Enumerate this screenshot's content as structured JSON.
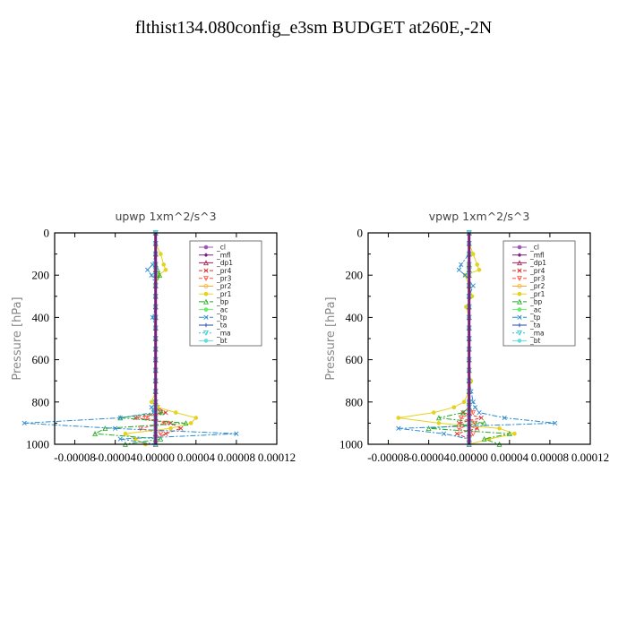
{
  "title": "flthist134.080config_e3sm  BUDGET at260E,-2N",
  "chart_data": [
    {
      "type": "line",
      "title": "upwp   1xm^2/s^3",
      "ylabel": "Pressure [hPa]",
      "xlabel": "",
      "xlim": [
        -0.0001,
        0.00012
      ],
      "ylim": [
        1000,
        0
      ],
      "x_ticks": [
        "-0.00008",
        "-0.00004",
        "0.00000",
        "0.00004",
        "0.00008",
        "0.00012"
      ],
      "y_ticks": [
        "0",
        "200",
        "400",
        "600",
        "800",
        "1000"
      ],
      "legend_position": "top-right",
      "levels": [
        0,
        50,
        100,
        150,
        175,
        200,
        250,
        300,
        350,
        400,
        450,
        500,
        550,
        600,
        650,
        700,
        750,
        800,
        825,
        850,
        875,
        900,
        925,
        950,
        975,
        1000
      ],
      "series": [
        {
          "name": "_cl",
          "color": "#9b59b6",
          "values": [
            0,
            0,
            0,
            0,
            0,
            0,
            0,
            0,
            0,
            0,
            0,
            0,
            0,
            0,
            0,
            0,
            0,
            0,
            0,
            0,
            0,
            0,
            0,
            0,
            0,
            0
          ]
        },
        {
          "name": "_mfl",
          "color": "#7a1f7a",
          "values": [
            0,
            0,
            0,
            0,
            0,
            0,
            0,
            0,
            0,
            0,
            0,
            0,
            0,
            0,
            0,
            0,
            0,
            0,
            0,
            0,
            0,
            0,
            0,
            0,
            0,
            0
          ]
        },
        {
          "name": "_dp1",
          "color": "#aa2255",
          "values": [
            0,
            0,
            0,
            0,
            0,
            0,
            0,
            0,
            0,
            0,
            0,
            0,
            0,
            0,
            0,
            0,
            0,
            0,
            0,
            0,
            0,
            0,
            0,
            0,
            0,
            0
          ]
        },
        {
          "name": "_pr4",
          "color": "#dd3333",
          "values": [
            0,
            0,
            0,
            0,
            0,
            0,
            0,
            0,
            0,
            0,
            0,
            0,
            0,
            0,
            0,
            0,
            0,
            0,
            2e-06,
            1e-05,
            -2e-05,
            1.5e-05,
            2.5e-05,
            1e-05,
            0,
            0
          ]
        },
        {
          "name": "_pr3",
          "color": "#ff5544",
          "values": [
            0,
            0,
            0,
            0,
            0,
            0,
            0,
            0,
            0,
            0,
            0,
            0,
            0,
            0,
            0,
            0,
            0,
            0,
            0,
            5e-06,
            -1e-05,
            1e-05,
            -1.5e-05,
            5e-06,
            0,
            0
          ]
        },
        {
          "name": "_pr2",
          "color": "#ffaa22",
          "values": [
            0,
            0,
            0,
            0,
            0,
            0,
            0,
            0,
            0,
            0,
            0,
            0,
            0,
            0,
            0,
            0,
            0,
            0,
            0,
            0,
            0,
            0,
            0,
            0,
            0,
            0
          ]
        },
        {
          "name": "_pr1",
          "color": "#e6d21e",
          "values": [
            0,
            0,
            5e-06,
            8e-06,
            1e-05,
            3e-06,
            0,
            0,
            0,
            0,
            0,
            0,
            0,
            0,
            0,
            0,
            0,
            -4e-06,
            2e-06,
            2e-05,
            4e-05,
            3.5e-05,
            1.5e-05,
            -3e-05,
            -2e-05,
            -1e-05
          ]
        },
        {
          "name": "_bp",
          "color": "#22aa22",
          "values": [
            0,
            0,
            0,
            0,
            2e-06,
            4e-06,
            0,
            0,
            0,
            0,
            0,
            0,
            0,
            0,
            0,
            0,
            0,
            0,
            0,
            6e-06,
            -3.5e-05,
            3e-05,
            -5e-05,
            -6e-05,
            5e-06,
            -3e-05
          ]
        },
        {
          "name": "_ac",
          "color": "#66ee66",
          "values": [
            0,
            0,
            0,
            0,
            0,
            0,
            0,
            0,
            0,
            0,
            0,
            0,
            0,
            0,
            0,
            0,
            0,
            0,
            0,
            0,
            0,
            0,
            0,
            0,
            0,
            0
          ]
        },
        {
          "name": "_tp",
          "color": "#2a8ad0",
          "values": [
            0,
            0,
            0,
            -3e-06,
            -8e-06,
            -4e-06,
            0,
            0,
            0,
            -3e-06,
            0,
            0,
            0,
            0,
            0,
            0,
            0,
            0,
            -4e-06,
            -2e-06,
            -3.5e-05,
            -0.00013,
            -4e-05,
            8e-05,
            -3.5e-05,
            0
          ]
        },
        {
          "name": "_ta",
          "color": "#2244aa",
          "values": [
            0,
            0,
            0,
            0,
            0,
            0,
            0,
            0,
            0,
            0,
            0,
            0,
            0,
            0,
            0,
            0,
            0,
            0,
            0,
            0,
            0,
            0,
            0,
            0,
            0,
            0
          ]
        },
        {
          "name": "_ma",
          "color": "#22cccc",
          "values": [
            0,
            0,
            0,
            0,
            0,
            0,
            0,
            0,
            0,
            0,
            0,
            0,
            0,
            0,
            0,
            0,
            0,
            0,
            0,
            0,
            0,
            0,
            0,
            0,
            0,
            0
          ]
        },
        {
          "name": "_bt",
          "color": "#66dddd",
          "values": [
            0,
            0,
            0,
            0,
            0,
            0,
            0,
            0,
            0,
            0,
            0,
            0,
            0,
            0,
            0,
            0,
            0,
            0,
            0,
            0,
            0,
            0,
            0,
            0,
            0,
            0
          ]
        }
      ]
    },
    {
      "type": "line",
      "title": "vpwp   1xm^2/s^3",
      "ylabel": "Pressure [hPa]",
      "xlabel": "",
      "xlim": [
        -0.0001,
        0.00012
      ],
      "ylim": [
        1000,
        0
      ],
      "x_ticks": [
        "-0.00008",
        "-0.00004",
        "0.00000",
        "0.00004",
        "0.00008",
        "0.00012"
      ],
      "y_ticks": [
        "0",
        "200",
        "400",
        "600",
        "800",
        "1000"
      ],
      "legend_position": "top-right",
      "levels": [
        0,
        50,
        100,
        150,
        175,
        200,
        250,
        300,
        350,
        400,
        450,
        500,
        550,
        600,
        650,
        700,
        750,
        800,
        825,
        850,
        875,
        900,
        925,
        950,
        975,
        1000
      ],
      "series": [
        {
          "name": "_cl",
          "color": "#9b59b6",
          "values": [
            0,
            0,
            0,
            0,
            0,
            0,
            0,
            0,
            0,
            0,
            0,
            0,
            0,
            0,
            0,
            0,
            0,
            0,
            0,
            0,
            0,
            0,
            0,
            0,
            0,
            0
          ]
        },
        {
          "name": "_mfl",
          "color": "#7a1f7a",
          "values": [
            0,
            0,
            0,
            0,
            0,
            0,
            0,
            0,
            0,
            0,
            0,
            0,
            0,
            0,
            0,
            0,
            0,
            0,
            0,
            0,
            0,
            0,
            0,
            0,
            0,
            0
          ]
        },
        {
          "name": "_dp1",
          "color": "#aa2255",
          "values": [
            0,
            0,
            0,
            0,
            0,
            0,
            0,
            0,
            0,
            0,
            0,
            0,
            0,
            0,
            0,
            0,
            0,
            0,
            0,
            0,
            0,
            0,
            0,
            0,
            0,
            0
          ]
        },
        {
          "name": "_pr4",
          "color": "#dd3333",
          "values": [
            0,
            0,
            0,
            0,
            0,
            0,
            0,
            0,
            0,
            0,
            0,
            0,
            0,
            0,
            0,
            0,
            0,
            0,
            0,
            -6e-06,
            1.2e-05,
            -1e-05,
            8e-06,
            -1.2e-05,
            0,
            0
          ]
        },
        {
          "name": "_pr3",
          "color": "#ff5544",
          "values": [
            0,
            0,
            0,
            0,
            0,
            0,
            0,
            0,
            0,
            0,
            0,
            0,
            0,
            0,
            0,
            0,
            0,
            0,
            0,
            4e-06,
            -8e-06,
            6e-06,
            -1e-05,
            4e-06,
            0,
            0
          ]
        },
        {
          "name": "_pr2",
          "color": "#ffaa22",
          "values": [
            0,
            0,
            0,
            0,
            0,
            0,
            0,
            0,
            0,
            0,
            0,
            0,
            0,
            0,
            0,
            0,
            0,
            0,
            0,
            0,
            0,
            0,
            0,
            0,
            0,
            0
          ]
        },
        {
          "name": "_pr1",
          "color": "#e6d21e",
          "values": [
            0,
            0,
            4e-06,
            8e-06,
            1e-05,
            -4e-06,
            0,
            3e-06,
            -3e-06,
            0,
            0,
            0,
            0,
            0,
            0,
            2e-06,
            0,
            -5e-06,
            -1.5e-05,
            -3.5e-05,
            -7e-05,
            -3e-05,
            3e-05,
            4.5e-05,
            2e-05,
            0
          ]
        },
        {
          "name": "_bp",
          "color": "#22aa22",
          "values": [
            0,
            0,
            0,
            0,
            0,
            0,
            0,
            0,
            0,
            0,
            0,
            0,
            0,
            0,
            0,
            0,
            0,
            0,
            0,
            -6e-06,
            -3e-05,
            1.5e-05,
            -4e-05,
            4e-05,
            1.5e-05,
            3e-05
          ]
        },
        {
          "name": "_ac",
          "color": "#66ee66",
          "values": [
            0,
            0,
            0,
            0,
            0,
            0,
            0,
            0,
            0,
            0,
            0,
            0,
            0,
            0,
            0,
            0,
            0,
            0,
            0,
            0,
            0,
            0,
            0,
            0,
            0,
            0
          ]
        },
        {
          "name": "_tp",
          "color": "#2a8ad0",
          "values": [
            0,
            0,
            0,
            -8e-06,
            -1e-05,
            -4e-06,
            4e-06,
            0,
            0,
            0,
            0,
            0,
            0,
            0,
            0,
            0,
            2e-06,
            4e-06,
            6e-06,
            1e-05,
            3.5e-05,
            8.5e-05,
            -7e-05,
            -2.5e-05,
            0,
            0
          ]
        },
        {
          "name": "_ta",
          "color": "#2244aa",
          "values": [
            0,
            0,
            0,
            0,
            0,
            0,
            0,
            0,
            0,
            0,
            0,
            0,
            0,
            0,
            0,
            0,
            0,
            0,
            0,
            0,
            0,
            0,
            0,
            0,
            0,
            0
          ]
        },
        {
          "name": "_ma",
          "color": "#22cccc",
          "values": [
            0,
            0,
            0,
            0,
            0,
            0,
            0,
            0,
            0,
            0,
            0,
            0,
            0,
            0,
            0,
            0,
            0,
            0,
            0,
            0,
            0,
            0,
            0,
            0,
            0,
            0
          ]
        },
        {
          "name": "_bt",
          "color": "#66dddd",
          "values": [
            0,
            0,
            0,
            0,
            0,
            0,
            0,
            0,
            0,
            0,
            0,
            0,
            0,
            0,
            0,
            0,
            0,
            0,
            0,
            0,
            0,
            0,
            0,
            0,
            0,
            0
          ]
        }
      ]
    }
  ]
}
